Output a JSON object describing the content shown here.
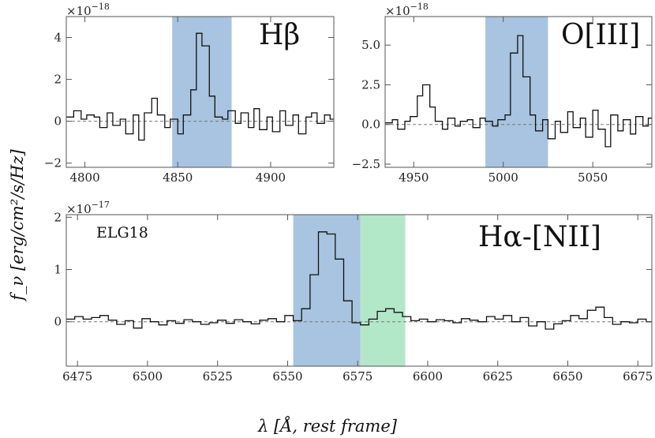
{
  "chart_data": [
    {
      "type": "line",
      "panel": "hbeta",
      "label": "Hβ",
      "multiplier": "×10⁻¹⁸",
      "xlim": [
        4790,
        4934
      ],
      "ylim": [
        -2.2,
        5.0
      ],
      "xticks": [
        4800,
        4850,
        4900
      ],
      "yticks": [
        -2,
        0,
        2,
        4
      ],
      "ytick_labels": [
        "−2",
        "0",
        "2",
        "4"
      ],
      "shaded": [
        {
          "from": 4847,
          "to": 4879,
          "color": "#a8c4e0"
        }
      ],
      "step_x": [
        4790,
        4794,
        4798,
        4801,
        4805,
        4808,
        4812,
        4815,
        4819,
        4822,
        4826,
        4829,
        4832,
        4836,
        4839,
        4843,
        4846,
        4850,
        4853,
        4857,
        4860,
        4863,
        4867,
        4870,
        4874,
        4877,
        4881,
        4884,
        4888,
        4891,
        4894,
        4898,
        4901,
        4905,
        4908,
        4912,
        4915,
        4919,
        4922,
        4925,
        4929,
        4932,
        4934
      ],
      "step_y": [
        0.2,
        0.5,
        0.1,
        0.3,
        0.2,
        -0.3,
        0.4,
        -0.2,
        0.1,
        -0.6,
        0.3,
        -0.9,
        0.4,
        1.1,
        0.3,
        -0.3,
        0.1,
        -0.6,
        0.3,
        1.5,
        4.2,
        3.6,
        1.2,
        0.2,
        0.1,
        0.5,
        -0.1,
        0.4,
        -0.3,
        0.6,
        -0.4,
        0.2,
        -0.5,
        0.5,
        -0.2,
        0.3,
        -0.6,
        0.2,
        0.4,
        -0.1,
        0.3,
        0.1,
        0.1
      ]
    },
    {
      "type": "line",
      "panel": "oiii",
      "label": "O[III]",
      "multiplier": "×10⁻¹⁸",
      "xlim": [
        4934,
        5083
      ],
      "ylim": [
        -2.7,
        6.8
      ],
      "xticks": [
        4950,
        5000,
        5050
      ],
      "yticks": [
        -2.5,
        0,
        2.5,
        5.0
      ],
      "ytick_labels": [
        "−2.5",
        "0.0",
        "2.5",
        "5.0"
      ],
      "shaded": [
        {
          "from": 4990,
          "to": 5025,
          "color": "#a8c4e0"
        }
      ],
      "step_x": [
        4934,
        4938,
        4941,
        4945,
        4948,
        4952,
        4955,
        4959,
        4962,
        4966,
        4969,
        4973,
        4976,
        4980,
        4983,
        4987,
        4990,
        4994,
        4997,
        5001,
        5004,
        5008,
        5011,
        5015,
        5018,
        5022,
        5025,
        5029,
        5032,
        5036,
        5039,
        5043,
        5046,
        5050,
        5053,
        5057,
        5060,
        5064,
        5067,
        5071,
        5074,
        5078,
        5081,
        5083
      ],
      "step_y": [
        0.1,
        0.3,
        -0.3,
        0.2,
        0.5,
        1.8,
        2.5,
        1.1,
        0.2,
        -0.3,
        0.4,
        -0.1,
        0.2,
        0.3,
        -0.2,
        0.4,
        0.2,
        -0.1,
        0.3,
        0.6,
        4.5,
        5.6,
        3.0,
        0.6,
        -0.4,
        0.3,
        -0.9,
        0.2,
        -0.5,
        0.8,
        -0.2,
        0.4,
        -0.8,
        0.9,
        -0.3,
        -1.4,
        0.6,
        -0.4,
        0.3,
        -0.6,
        0.5,
        -0.1,
        0.4,
        0.3
      ]
    },
    {
      "type": "line",
      "panel": "halpha",
      "label": "Hα-[NII]",
      "object": "ELG18",
      "multiplier": "×10⁻¹⁷",
      "xlim": [
        6471,
        6680
      ],
      "ylim": [
        -0.85,
        2.05
      ],
      "xticks": [
        6475,
        6500,
        6525,
        6550,
        6575,
        6600,
        6625,
        6650,
        6675
      ],
      "yticks": [
        0,
        1,
        2
      ],
      "ytick_labels": [
        "0",
        "1",
        "2"
      ],
      "shaded": [
        {
          "from": 6552,
          "to": 6576,
          "color": "#a8c4e0"
        },
        {
          "from": 6576,
          "to": 6592,
          "color": "#b2e8c8"
        }
      ],
      "step_x": [
        6471,
        6474,
        6477,
        6480,
        6483,
        6486,
        6489,
        6492,
        6495,
        6498,
        6501,
        6504,
        6507,
        6510,
        6513,
        6516,
        6519,
        6522,
        6525,
        6528,
        6531,
        6534,
        6537,
        6540,
        6543,
        6546,
        6549,
        6552,
        6555,
        6558,
        6561,
        6564,
        6567,
        6570,
        6573,
        6576,
        6579,
        6582,
        6585,
        6588,
        6591,
        6594,
        6597,
        6600,
        6603,
        6606,
        6609,
        6612,
        6615,
        6618,
        6621,
        6624,
        6627,
        6630,
        6633,
        6636,
        6639,
        6642,
        6645,
        6648,
        6651,
        6654,
        6657,
        6660,
        6663,
        6666,
        6669,
        6672,
        6675,
        6678,
        6680
      ],
      "step_y": [
        0.05,
        0.1,
        0.05,
        0.08,
        0.12,
        0.03,
        -0.05,
        0.02,
        -0.12,
        0.06,
        0.0,
        -0.06,
        0.02,
        -0.03,
        0.04,
        0.0,
        -0.05,
        -0.02,
        0.03,
        -0.03,
        0.04,
        0.0,
        -0.04,
        0.03,
        0.06,
        0.0,
        0.12,
        0.02,
        0.25,
        0.9,
        1.72,
        1.68,
        1.2,
        0.4,
        -0.02,
        -0.06,
        0.05,
        0.2,
        0.25,
        0.18,
        0.1,
        0.02,
        0.05,
        0.0,
        0.04,
        0.02,
        -0.02,
        0.06,
        0.03,
        0.0,
        0.1,
        0.05,
        0.12,
        0.0,
        0.08,
        -0.08,
        0.0,
        -0.14,
        -0.04,
        0.02,
        0.12,
        0.06,
        0.22,
        0.28,
        0.08,
        -0.05,
        0.0,
        -0.02,
        0.05,
        0.0,
        0.03
      ]
    }
  ],
  "xlabel": "λ [Å, rest frame]",
  "ylabel": "f_ν [erg/cm²/s/Hz]",
  "exp_18": "×10",
  "exp_18_sup": "−18",
  "exp_17": "×10",
  "exp_17_sup": "−17",
  "label_hbeta": "Hβ",
  "label_oiii": "O[III]",
  "label_halpha": "Hα-[NII]",
  "label_object": "ELG18"
}
